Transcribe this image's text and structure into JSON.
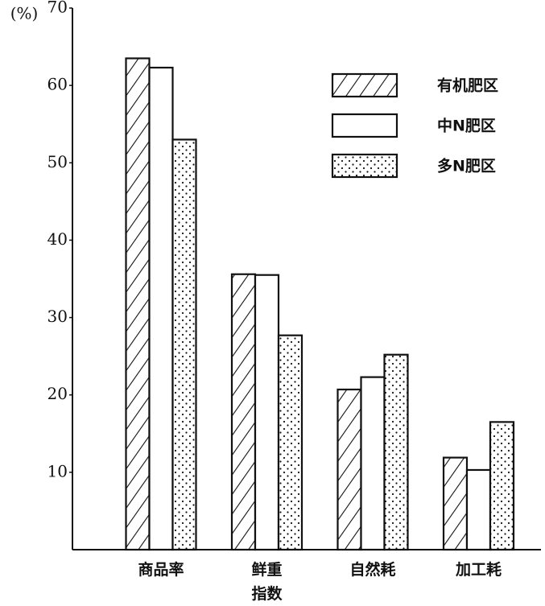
{
  "chart_data": {
    "type": "bar",
    "y_label": "(%)",
    "categories": [
      "商品率",
      "鲜重\n指数",
      "自然耗",
      "加工耗"
    ],
    "series": [
      {
        "name": "有机肥区",
        "color": "#111111",
        "pattern": "hatch",
        "values": [
          63.5,
          35.6,
          20.7,
          11.9
        ]
      },
      {
        "name": "中N肥区",
        "color": "#111111",
        "pattern": "none",
        "values": [
          62.3,
          35.5,
          22.3,
          10.3
        ]
      },
      {
        "name": "多N肥区",
        "color": "#111111",
        "pattern": "dots",
        "values": [
          53,
          27.7,
          25.2,
          16.5
        ]
      }
    ],
    "ylim": [
      0,
      70
    ],
    "yticks": [
      10,
      20,
      30,
      40,
      50,
      60,
      70
    ],
    "grid": false,
    "legend": "top-right"
  }
}
